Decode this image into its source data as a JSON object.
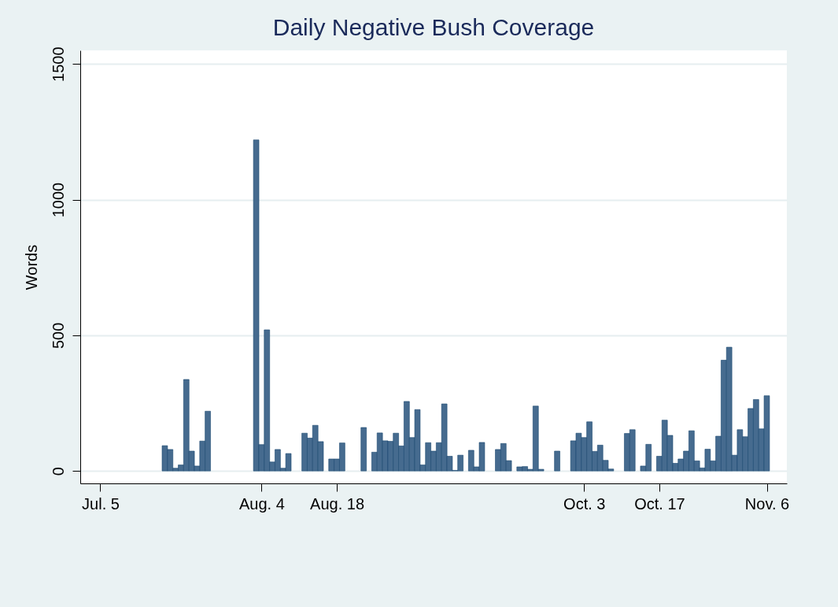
{
  "chart_data": {
    "type": "bar",
    "title": "Daily Negative Bush Coverage",
    "ylabel": "Words",
    "x": [
      "--07-17",
      "--07-18",
      "--07-19",
      "--07-20",
      "--07-21",
      "--07-22",
      "--07-23",
      "--07-24",
      "--07-25",
      "--08-03",
      "--08-04",
      "--08-05",
      "--08-06",
      "--08-07",
      "--08-08",
      "--08-09",
      "--08-12",
      "--08-13",
      "--08-14",
      "--08-15",
      "--08-17",
      "--08-18",
      "--08-19",
      "--08-23",
      "--08-25",
      "--08-26",
      "--08-27",
      "--08-28",
      "--08-29",
      "--08-30",
      "--08-31",
      "--09-01",
      "--09-02",
      "--09-03",
      "--09-04",
      "--09-05",
      "--09-06",
      "--09-07",
      "--09-08",
      "--09-09",
      "--09-10",
      "--09-12",
      "--09-13",
      "--09-14",
      "--09-17",
      "--09-18",
      "--09-19",
      "--09-21",
      "--09-22",
      "--09-23",
      "--09-24",
      "--09-25",
      "--09-28",
      "--10-01",
      "--10-02",
      "--10-03",
      "--10-04",
      "--10-05",
      "--10-06",
      "--10-07",
      "--10-08",
      "--10-11",
      "--10-12",
      "--10-14",
      "--10-15",
      "--10-17",
      "--10-18",
      "--10-19",
      "--10-20",
      "--10-21",
      "--10-22",
      "--10-23",
      "--10-24",
      "--10-25",
      "--10-26",
      "--10-27",
      "--10-28",
      "--10-29",
      "--10-30",
      "--10-31",
      "--11-01",
      "--11-02",
      "--11-03",
      "--11-04",
      "--11-05",
      "--11-06"
    ],
    "values": [
      93,
      79,
      10,
      22,
      337,
      73,
      18,
      110,
      220,
      1220,
      97,
      520,
      33,
      79,
      10,
      64,
      139,
      121,
      168,
      108,
      44,
      44,
      103,
      160,
      69,
      140,
      111,
      109,
      139,
      92,
      256,
      123,
      226,
      22,
      104,
      73,
      104,
      247,
      54,
      2,
      58,
      76,
      15,
      105,
      79,
      101,
      38,
      15,
      16,
      6,
      239,
      6,
      73,
      111,
      139,
      123,
      181,
      72,
      95,
      39,
      7,
      138,
      152,
      18,
      98,
      54,
      187,
      131,
      28,
      44,
      73,
      148,
      37,
      11,
      80,
      37,
      128,
      408,
      456,
      58,
      152,
      126,
      230,
      263,
      155,
      277
    ],
    "color": "#466b8f",
    "xlim": [
      "--07-02",
      "--11-09"
    ],
    "xticks": [
      {
        "value": "--07-05",
        "label": "Jul. 5"
      },
      {
        "value": "--08-04",
        "label": "Aug. 4"
      },
      {
        "value": "--08-18",
        "label": "Aug. 18"
      },
      {
        "value": "--10-03",
        "label": "Oct. 3"
      },
      {
        "value": "--10-17",
        "label": "Oct. 17"
      },
      {
        "value": "--11-06",
        "label": "Nov. 6"
      }
    ],
    "ylim": [
      -46,
      1550
    ],
    "yticks": [
      0,
      500,
      1000,
      1500
    ],
    "grid": "y"
  }
}
